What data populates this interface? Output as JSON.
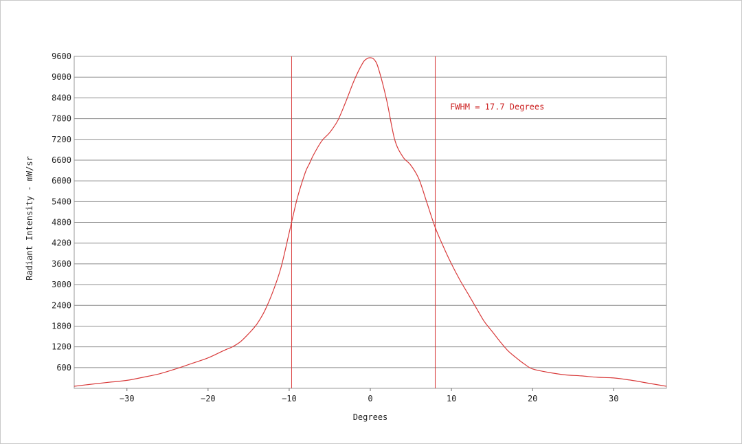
{
  "chart_data": {
    "type": "line",
    "title": "",
    "xlabel": "Degrees",
    "ylabel": "Radiant Intensity - mW/sr",
    "xlim": [
      -36.5,
      36.5
    ],
    "ylim": [
      0,
      9600
    ],
    "xticks": [
      -30,
      -20,
      -10,
      0,
      10,
      20,
      30
    ],
    "xtick_labels": [
      "−30",
      "−20",
      "−10",
      "0",
      "10",
      "20",
      "30"
    ],
    "yticks": [
      600,
      1200,
      1800,
      2400,
      3000,
      3600,
      4200,
      4800,
      5400,
      6000,
      6600,
      7200,
      7800,
      8400,
      9000,
      9600
    ],
    "ytick_labels": [
      "600",
      "1200",
      "1800",
      "2400",
      "3000",
      "3600",
      "4200",
      "4800",
      "5400",
      "6000",
      "6600",
      "7200",
      "7800",
      "8400",
      "9000",
      "9600"
    ],
    "grid": {
      "horizontal": true,
      "vertical": false
    },
    "series": [
      {
        "color": "#d83a3a",
        "x": [
          -36.5,
          -34,
          -32,
          -30,
          -28,
          -26,
          -24,
          -22,
          -20,
          -18,
          -17,
          -16,
          -15,
          -14,
          -13,
          -12,
          -11,
          -10,
          -9,
          -8,
          -7.5,
          -7,
          -6,
          -5,
          -4,
          -3,
          -2,
          -1,
          -0.5,
          0,
          0.5,
          1,
          2,
          3,
          4,
          5,
          6,
          7,
          8,
          9,
          10,
          11,
          12,
          13,
          14,
          15,
          16,
          17,
          18,
          19,
          20,
          22,
          24,
          26,
          28,
          30,
          32,
          34,
          36.5
        ],
        "y": [
          60,
          130,
          180,
          230,
          320,
          420,
          560,
          720,
          880,
          1100,
          1200,
          1350,
          1580,
          1850,
          2250,
          2800,
          3500,
          4500,
          5500,
          6250,
          6500,
          6750,
          7150,
          7400,
          7750,
          8300,
          8900,
          9380,
          9520,
          9560,
          9500,
          9250,
          8350,
          7200,
          6700,
          6450,
          6050,
          5350,
          4650,
          4100,
          3600,
          3150,
          2750,
          2350,
          1950,
          1650,
          1350,
          1080,
          880,
          700,
          560,
          460,
          390,
          360,
          320,
          300,
          240,
          160,
          60
        ]
      }
    ],
    "markers": {
      "x": [
        -9.7,
        8
      ],
      "color": "#d83a3a"
    },
    "annotations": [
      {
        "text": "FWHM = 17.7 Degrees",
        "x": 10,
        "y": 8140,
        "color": "#cc2222"
      }
    ]
  }
}
